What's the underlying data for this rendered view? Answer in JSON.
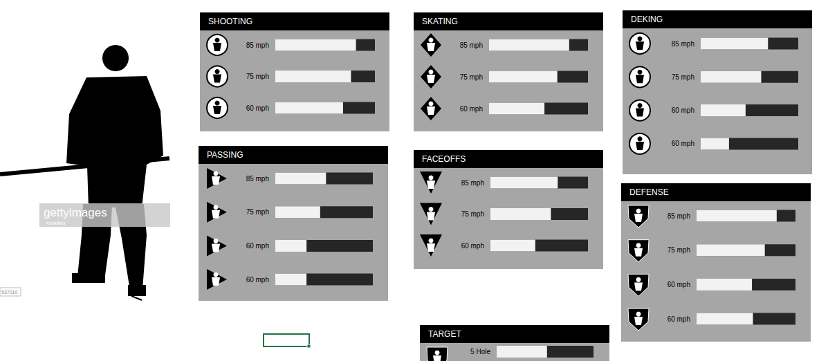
{
  "chart_data": [
    {
      "type": "bar",
      "title": "SHOOTING",
      "orientation": "horizontal",
      "tick_labels": "y",
      "color": "#f2f2f2",
      "categories": [
        "85 mph",
        "75 mph",
        "60 mph"
      ],
      "values": [
        81,
        76,
        68
      ],
      "xlim": [
        0,
        100
      ]
    },
    {
      "type": "bar",
      "title": "PASSING",
      "orientation": "horizontal",
      "tick_labels": "y",
      "color": "#f2f2f2",
      "categories": [
        "85 mph",
        "75 mph",
        "60 mph",
        "60 mph"
      ],
      "values": [
        52,
        46,
        32,
        32
      ],
      "xlim": [
        0,
        100
      ]
    },
    {
      "type": "bar",
      "title": "SKATING",
      "orientation": "horizontal",
      "tick_labels": "y",
      "color": "#f2f2f2",
      "categories": [
        "85 mph",
        "75 mph",
        "60 mph"
      ],
      "values": [
        81,
        69,
        56
      ],
      "xlim": [
        0,
        100
      ]
    },
    {
      "type": "bar",
      "title": "FACEOFFS",
      "orientation": "horizontal",
      "tick_labels": "y",
      "color": "#f2f2f2",
      "categories": [
        "85 mph",
        "75 mph",
        "60 mph"
      ],
      "values": [
        69,
        62,
        46
      ],
      "xlim": [
        0,
        100
      ]
    },
    {
      "type": "bar",
      "title": "DEKING",
      "orientation": "horizontal",
      "tick_labels": "y",
      "color": "#f2f2f2",
      "categories": [
        "85 mph",
        "75 mph",
        "60 mph",
        "60 mph"
      ],
      "values": [
        69,
        62,
        46,
        29
      ],
      "xlim": [
        0,
        100
      ]
    },
    {
      "type": "bar",
      "title": "DEFENSE",
      "orientation": "horizontal",
      "tick_labels": "y",
      "color": "#f2f2f2",
      "categories": [
        "85 mph",
        "75 mph",
        "60 mph",
        "60 mph"
      ],
      "values": [
        81,
        69,
        56,
        57
      ],
      "xlim": [
        0,
        100
      ]
    },
    {
      "type": "bar",
      "title": "TARGET",
      "orientation": "horizontal",
      "tick_labels": "y",
      "color": "#f2f2f2",
      "categories": [
        "5 Hole"
      ],
      "values": [
        52
      ],
      "xlim": [
        0,
        100
      ]
    }
  ],
  "watermark": {
    "brand": "gettyimages",
    "credit": "XonkArts",
    "id": "537010"
  }
}
